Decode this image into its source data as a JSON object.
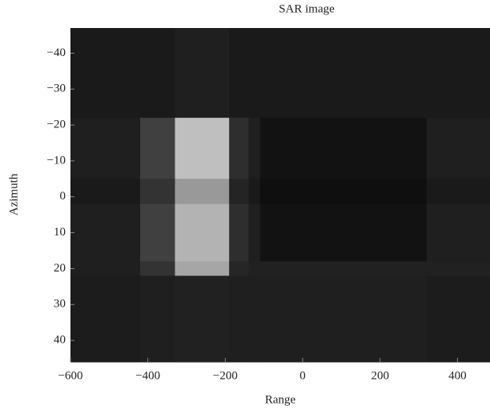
{
  "chart_data": {
    "type": "heatmap",
    "title": "SAR image",
    "x_label": "Range",
    "y_label": "Azimuth",
    "xlim": [
      -600,
      484
    ],
    "ylim": [
      -47,
      46
    ],
    "y_reversed": true,
    "xticks": [
      {
        "value": -600,
        "label": "−600"
      },
      {
        "value": -400,
        "label": "−400"
      },
      {
        "value": -200,
        "label": "−200"
      },
      0,
      200,
      400
    ],
    "yticks": [
      {
        "value": -40,
        "label": "−40"
      },
      {
        "value": -30,
        "label": "−30"
      },
      {
        "value": -20,
        "label": "−20"
      },
      {
        "value": -10,
        "label": "−10"
      },
      0,
      10,
      20,
      30,
      40
    ],
    "x_edges": [
      -600,
      -420,
      -330,
      -190,
      -140,
      -110,
      320,
      484
    ],
    "y_edges": [
      -47,
      -22,
      -5,
      2,
      18,
      22,
      46
    ],
    "z": [
      [
        0.1,
        0.1,
        0.12,
        0.1,
        0.1,
        0.1,
        0.1
      ],
      [
        0.12,
        0.25,
        0.75,
        0.18,
        0.12,
        0.07,
        0.12
      ],
      [
        0.1,
        0.2,
        0.6,
        0.14,
        0.1,
        0.06,
        0.1
      ],
      [
        0.12,
        0.25,
        0.7,
        0.18,
        0.12,
        0.07,
        0.12
      ],
      [
        0.12,
        0.2,
        0.65,
        0.15,
        0.13,
        0.13,
        0.13
      ],
      [
        0.11,
        0.12,
        0.13,
        0.12,
        0.12,
        0.12,
        0.11
      ]
    ]
  }
}
